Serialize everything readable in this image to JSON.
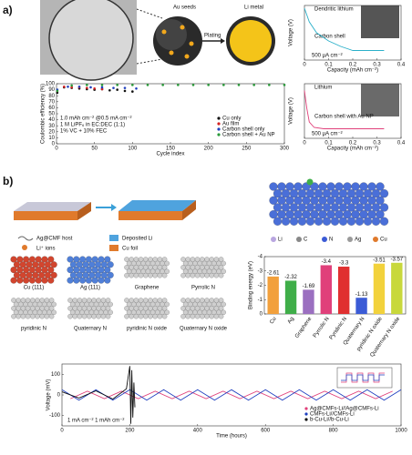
{
  "panel_labels": [
    "a)",
    "b)"
  ],
  "schematic_a": {
    "seeds": "Au seeds",
    "plating": "Plating",
    "metal": "Li metal"
  },
  "schematic_b": {
    "legend": [
      "Ag@CMF host",
      "Deposited Li",
      "Li⁺ ions",
      "Cu foil"
    ],
    "atoms": [
      "Li",
      "C",
      "N",
      "Ag",
      "Cu"
    ]
  },
  "structures": [
    "Cu (111)",
    "Ag (111)",
    "Graphene",
    "Pyrrolic N",
    "pyridinic N",
    "Quaternary N",
    "pyridinic N oxide",
    "Quaternary N oxide"
  ],
  "chart_data": [
    {
      "type": "scatter",
      "xlabel": "Cycle index",
      "ylabel": "Coulombic efficiency (%)",
      "xlim": [
        0,
        300
      ],
      "xticks": [
        0,
        50,
        100,
        150,
        200,
        250,
        300
      ],
      "ylim": [
        0,
        100
      ],
      "yticks": [
        0,
        10,
        20,
        30,
        40,
        50,
        60,
        70,
        80,
        90,
        100
      ],
      "annotations": [
        "1.0 mAh cm⁻² @0.5 mA cm⁻²",
        "1 M LiPF₆ in EC:DEC (1:1)",
        "1% VC + 10% FEC"
      ],
      "legend": "lower right",
      "series": [
        {
          "name": "Cu only",
          "color": "#111111",
          "x": [
            1,
            10,
            20,
            30,
            40,
            50,
            60,
            70,
            80,
            90,
            100
          ],
          "values": [
            85,
            94,
            93,
            92,
            91,
            90,
            91,
            89,
            90,
            88,
            87
          ]
        },
        {
          "name": "Au film",
          "color": "#d42020",
          "x": [
            1,
            10,
            20,
            30,
            40,
            50,
            60
          ],
          "values": [
            88,
            95,
            94,
            94,
            93,
            92,
            91
          ]
        },
        {
          "name": "Carbon shell only",
          "color": "#1f3fbf",
          "x": [
            1,
            15,
            30,
            45,
            60,
            75,
            90,
            105
          ],
          "values": [
            90,
            95,
            95,
            94,
            94,
            93,
            93,
            92
          ]
        },
        {
          "name": "Carbon shell + Au NP",
          "color": "#2a9a3a",
          "x": [
            1,
            20,
            40,
            60,
            80,
            100,
            120,
            140,
            160,
            180,
            200,
            220,
            240,
            260,
            280,
            300
          ],
          "values": [
            88,
            97,
            98,
            98,
            98,
            98,
            98,
            98,
            98,
            98,
            98,
            98,
            98,
            98,
            98,
            98
          ]
        }
      ]
    },
    {
      "type": "line",
      "xlabel": "Capacity (mAh cm⁻²)",
      "ylabel": "Voltage (V)",
      "xlim": [
        0,
        0.4
      ],
      "xticks": [
        0,
        0.1,
        0.2,
        0.3,
        0.4
      ],
      "ylim": [
        -0.1,
        0.3
      ],
      "annotations": [
        "Dendritic lithium",
        "Carbon shell",
        "500 μA cm⁻²"
      ],
      "series": [
        {
          "color": "#2bb0c9",
          "x": [
            0,
            0.02,
            0.05,
            0.1,
            0.15,
            0.2,
            0.25,
            0.3,
            0.33
          ],
          "values": [
            0.28,
            0.18,
            0.1,
            0.04,
            0,
            -0.03,
            -0.03,
            -0.03,
            -0.03
          ]
        }
      ]
    },
    {
      "type": "line",
      "xlabel": "Capacity (mAh cm⁻²)",
      "ylabel": "Voltage (V)",
      "xlim": [
        0,
        0.4
      ],
      "xticks": [
        0,
        0.1,
        0.2,
        0.3,
        0.4
      ],
      "ylim": [
        -0.1,
        0.3
      ],
      "annotations": [
        "Lithium",
        "Carbon shell with Au NP",
        "500 μA cm⁻²"
      ],
      "series": [
        {
          "color": "#e0407a",
          "x": [
            0,
            0.01,
            0.02,
            0.04,
            0.08,
            0.15,
            0.25,
            0.33
          ],
          "values": [
            0.25,
            0.12,
            0.02,
            -0.02,
            -0.03,
            -0.03,
            -0.03,
            -0.03
          ]
        }
      ]
    },
    {
      "type": "bar",
      "ylabel": "Binding energy (eV)",
      "categories": [
        "Cu",
        "Ag",
        "Graphene",
        "Pyrrolic N",
        "Pyridinic N",
        "Quaternary N",
        "pyridinic N oxide",
        "Quaternary N oxide"
      ],
      "values": [
        -2.61,
        -2.32,
        -1.69,
        -3.4,
        -3.3,
        -1.13,
        -3.51,
        -3.57
      ],
      "colors": [
        "#f2a03c",
        "#3fae49",
        "#9b6fc0",
        "#e0407a",
        "#e03030",
        "#3b5bd6",
        "#f2d23c",
        "#c8d83c"
      ],
      "ylim": [
        0,
        -4
      ],
      "yticks": [
        0,
        -1,
        -2,
        -3,
        -4
      ]
    },
    {
      "type": "line",
      "xlabel": "Time (hours)",
      "ylabel": "Voltage (mV)",
      "xlim": [
        0,
        1000
      ],
      "xticks": [
        0,
        200,
        400,
        600,
        800,
        1000
      ],
      "ylim": [
        -150,
        150
      ],
      "yticks": [
        -100,
        0,
        100
      ],
      "annotations": [
        "1 mA cm⁻²  1 mAh cm⁻²"
      ],
      "legend": "lower right",
      "series": [
        {
          "name": "Ag@CMFs-Li//Ag@CMFs-Li",
          "color": "#e0407a",
          "x": [
            25,
            75,
            125,
            175,
            225,
            275,
            325,
            375,
            425,
            475,
            525,
            575,
            625,
            675,
            725,
            775,
            825,
            875,
            925,
            975
          ],
          "values": [
            -18,
            18,
            -18,
            18,
            -18,
            18,
            -18,
            18,
            -18,
            18,
            -18,
            18,
            -18,
            18,
            -18,
            18,
            -18,
            18,
            -18,
            18
          ]
        },
        {
          "name": "CMFs-Li//CMFs-Li",
          "color": "#1f3fbf",
          "x": [
            0,
            50,
            100,
            150,
            200,
            250,
            300,
            350,
            400,
            450,
            500,
            550,
            600,
            650,
            700,
            750,
            800,
            850,
            900,
            950,
            1000
          ],
          "values": [
            25,
            -25,
            25,
            -25,
            25,
            -25,
            25,
            -25,
            25,
            -25,
            25,
            -25,
            25,
            -25,
            25,
            -25,
            25,
            -25,
            25,
            -25,
            25
          ]
        },
        {
          "name": "b-Cu-Li//b-Cu-Li",
          "color": "#111111",
          "x": [
            0,
            50,
            100,
            150,
            190,
            200,
            203,
            206,
            209,
            212,
            215
          ],
          "values": [
            15,
            -15,
            20,
            -20,
            30,
            140,
            -140,
            120,
            -110,
            60,
            -60
          ]
        }
      ]
    }
  ]
}
